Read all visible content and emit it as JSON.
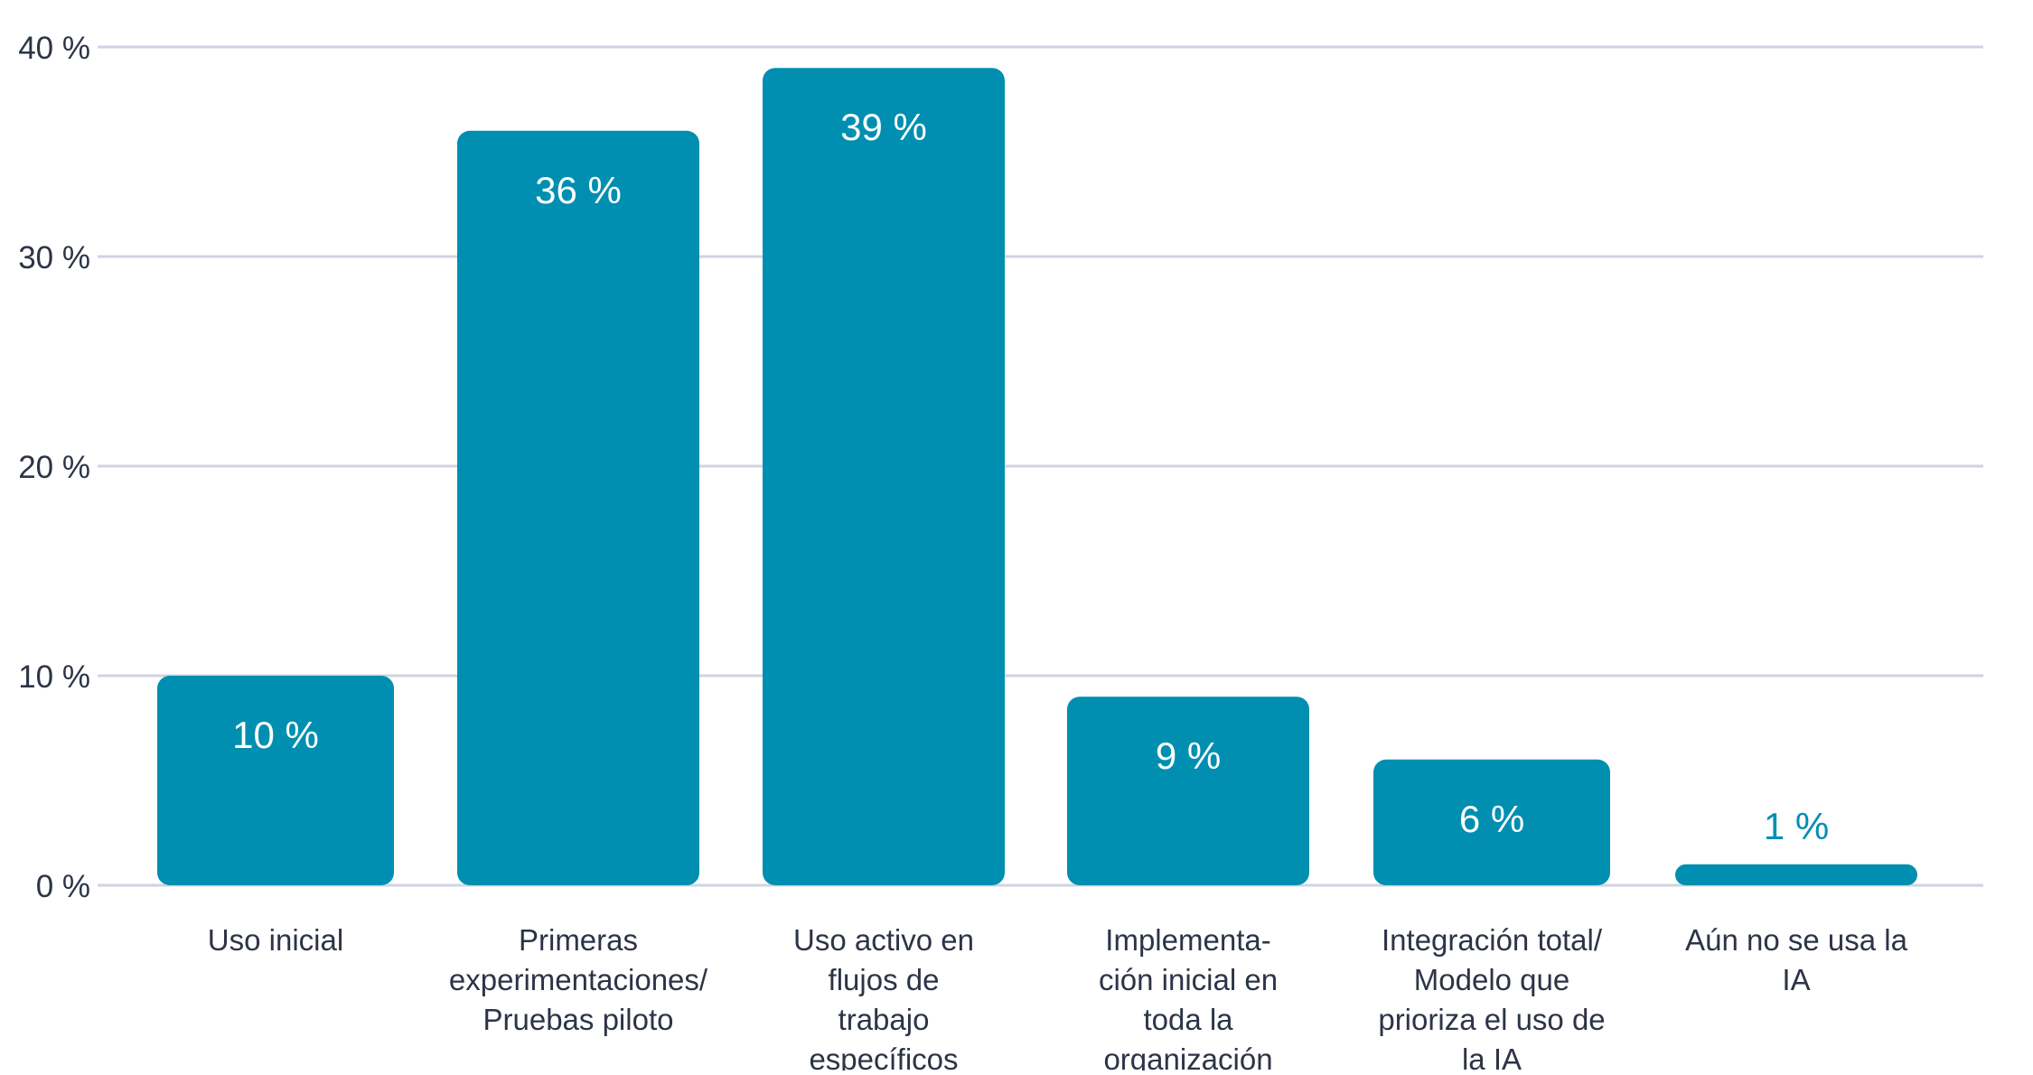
{
  "chart_data": {
    "type": "bar",
    "categories": [
      "Uso inicial",
      "Primeras experimentaciones/ Pruebas piloto",
      "Uso activo en flujos de trabajo específicos",
      "Implementa- ción inicial en toda la organización",
      "Integración total/ Modelo que prioriza el uso de la IA",
      "Aún no se usa la IA"
    ],
    "category_lines": [
      [
        "Uso inicial"
      ],
      [
        "Primeras",
        "experimentaciones/",
        "Pruebas piloto"
      ],
      [
        "Uso activo en",
        "flujos de",
        "trabajo",
        "específicos"
      ],
      [
        "Implementa-",
        "ción inicial en",
        "toda la",
        "organización"
      ],
      [
        "Integración total/",
        "Modelo que",
        "prioriza el uso de",
        "la IA"
      ],
      [
        "Aún no se usa la",
        "IA"
      ]
    ],
    "values": [
      10,
      36,
      39,
      9,
      6,
      1
    ],
    "data_labels": [
      "10 %",
      "36 %",
      "39 %",
      "9 %",
      "6 %",
      "1 %"
    ],
    "ylim": [
      0,
      40
    ],
    "yticks": [
      0,
      10,
      20,
      30,
      40
    ],
    "ytick_labels": [
      "0 %",
      "10 %",
      "20 %",
      "30 %",
      "40 %"
    ],
    "grid": true,
    "title": "",
    "xlabel": "",
    "ylabel": ""
  },
  "colors": {
    "bar": "#008fb0",
    "grid": "#cfd3e1",
    "axis_text": "#2d3447",
    "inside_label": "#ffffff",
    "outside_label": "#008fb0"
  }
}
